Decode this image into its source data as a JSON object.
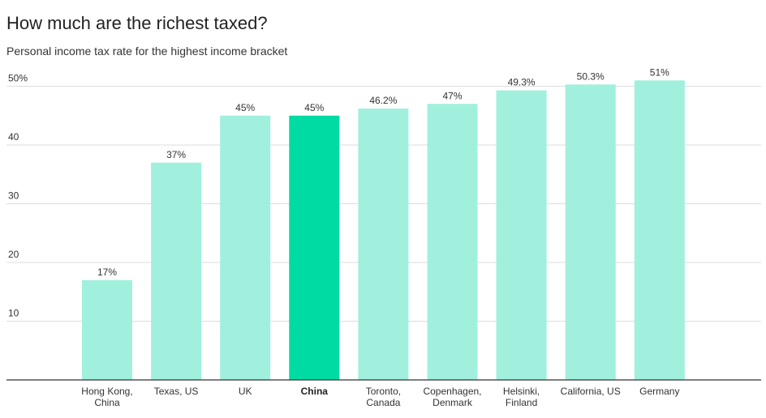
{
  "header": {
    "title": "How much are the richest taxed?",
    "subtitle": "Personal income tax rate for the highest income bracket"
  },
  "chart_data": {
    "type": "bar",
    "title": "How much are the richest taxed?",
    "subtitle": "Personal income tax rate for the highest income bracket",
    "xlabel": "",
    "ylabel": "",
    "ylim": [
      0,
      50
    ],
    "yticks": [
      10,
      20,
      30,
      40,
      50
    ],
    "ytick_labels": [
      "10",
      "20",
      "30",
      "40",
      "50%"
    ],
    "grid": true,
    "categories": [
      [
        "Hong Kong,",
        "China"
      ],
      [
        "Texas, US"
      ],
      [
        "UK"
      ],
      [
        "China"
      ],
      [
        "Toronto,",
        "Canada"
      ],
      [
        "Copenhagen,",
        "Denmark"
      ],
      [
        "Helsinki,",
        "Finland"
      ],
      [
        "California, US"
      ],
      [
        "Germany"
      ]
    ],
    "values": [
      17,
      37,
      45,
      45,
      46.2,
      47,
      49.3,
      50.3,
      51
    ],
    "value_labels": [
      "17%",
      "37%",
      "45%",
      "45%",
      "46.2%",
      "47%",
      "49.3%",
      "50.3%",
      "51%"
    ],
    "highlight_index": 3,
    "colors": {
      "bar": "#a0f0dd",
      "highlight": "#00dba4",
      "grid": "#dddddd",
      "axis": "#333333"
    }
  }
}
